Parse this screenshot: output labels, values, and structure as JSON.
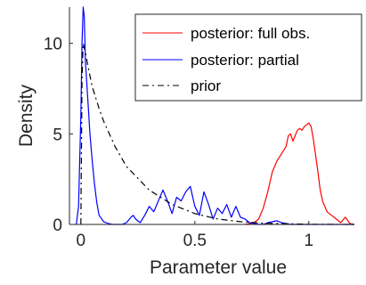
{
  "chart_data": {
    "type": "line",
    "title": "",
    "xlabel": "Parameter value",
    "ylabel": "Density",
    "xlim": [
      -0.05,
      1.2
    ],
    "ylim": [
      0,
      12
    ],
    "xticks": [
      0,
      0.5,
      1
    ],
    "xtick_labels": [
      "0",
      "0.5",
      "1"
    ],
    "yticks": [
      0,
      5,
      10
    ],
    "ytick_labels": [
      "0",
      "5",
      "10"
    ],
    "grid": false,
    "legend_position": "top-right",
    "series": [
      {
        "name": "posterior: full obs.",
        "color": "#ff0000",
        "style": "solid",
        "x": [
          0.72,
          0.76,
          0.78,
          0.8,
          0.82,
          0.84,
          0.86,
          0.88,
          0.9,
          0.91,
          0.92,
          0.93,
          0.94,
          0.95,
          0.96,
          0.97,
          0.98,
          0.99,
          1.0,
          1.01,
          1.02,
          1.03,
          1.04,
          1.05,
          1.06,
          1.08,
          1.1,
          1.12,
          1.14,
          1.16,
          1.18,
          1.2
        ],
        "y": [
          0,
          0.1,
          0.3,
          0.9,
          1.8,
          2.9,
          3.5,
          3.9,
          4.3,
          4.9,
          5.0,
          4.6,
          4.9,
          5.2,
          5.3,
          5.2,
          5.4,
          5.5,
          5.6,
          5.4,
          4.7,
          3.8,
          2.9,
          1.9,
          1.3,
          0.7,
          0.5,
          0.3,
          0.1,
          0.4,
          0.05,
          0
        ]
      },
      {
        "name": "posterior: partial",
        "color": "#0000ff",
        "style": "solid",
        "x": [
          -0.02,
          -0.01,
          0.0,
          0.005,
          0.01,
          0.015,
          0.02,
          0.03,
          0.04,
          0.05,
          0.06,
          0.07,
          0.08,
          0.1,
          0.12,
          0.14,
          0.16,
          0.18,
          0.2,
          0.22,
          0.23,
          0.24,
          0.26,
          0.28,
          0.3,
          0.32,
          0.34,
          0.36,
          0.38,
          0.4,
          0.42,
          0.44,
          0.46,
          0.48,
          0.5,
          0.52,
          0.54,
          0.56,
          0.58,
          0.6,
          0.62,
          0.64,
          0.66,
          0.68,
          0.7,
          0.72,
          0.74,
          0.76,
          0.78,
          0.8,
          0.82,
          0.84,
          0.86,
          0.88,
          0.9,
          0.92,
          1.2
        ],
        "y": [
          0,
          1.0,
          6.0,
          10.0,
          12.0,
          11.5,
          9.0,
          7.0,
          5.0,
          3.5,
          2.2,
          1.2,
          0.5,
          0.15,
          0.05,
          0,
          0,
          0,
          0.1,
          0.4,
          0.5,
          0.3,
          0.1,
          0.5,
          1.0,
          0.7,
          1.3,
          1.9,
          1.3,
          0.6,
          1.5,
          1.3,
          1.8,
          2.1,
          1.0,
          0.5,
          1.8,
          1.1,
          0.3,
          0.9,
          0.6,
          1.1,
          0.4,
          1.0,
          0.4,
          0.3,
          0.1,
          0.05,
          0,
          0,
          0.1,
          0.15,
          0.2,
          0.1,
          0.05,
          0,
          0
        ]
      },
      {
        "name": "prior",
        "color": "#000000",
        "style": "dash-dot",
        "x": [
          0.0,
          0.005,
          0.01,
          0.02,
          0.03,
          0.05,
          0.08,
          0.1,
          0.15,
          0.2,
          0.3,
          0.4,
          0.5,
          0.6,
          0.7,
          0.8,
          1.0,
          1.2
        ],
        "y": [
          0,
          8.0,
          10.0,
          9.5,
          8.8,
          7.6,
          6.4,
          5.7,
          4.3,
          3.2,
          1.9,
          1.1,
          0.6,
          0.3,
          0.15,
          0.07,
          0.01,
          0
        ]
      }
    ]
  }
}
